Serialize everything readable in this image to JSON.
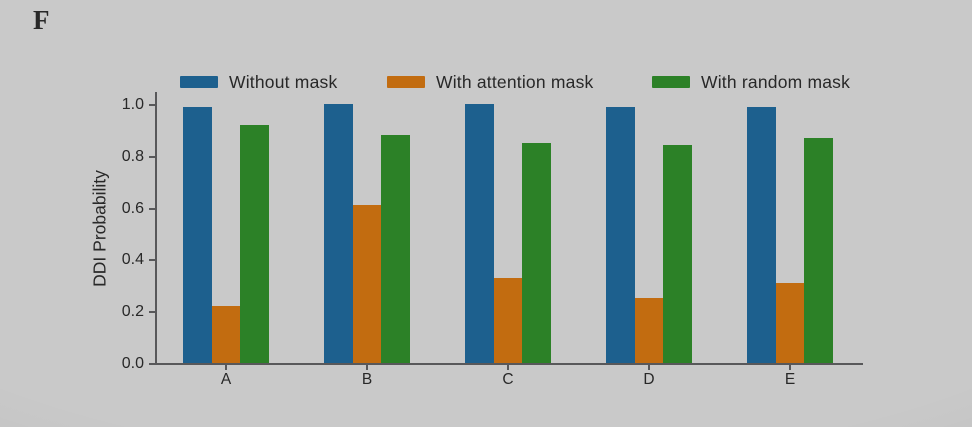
{
  "figure": {
    "panel_label": "F"
  },
  "colors": {
    "background": "#c9c9c9",
    "text": "#282828",
    "axis": "#58585a"
  },
  "chart_data": {
    "type": "bar",
    "title": "",
    "categories": [
      "A",
      "B",
      "C",
      "D",
      "E"
    ],
    "series": [
      {
        "name": "Without mask",
        "color": "#1d608e",
        "values": [
          0.99,
          1.0,
          1.0,
          0.99,
          0.99
        ]
      },
      {
        "name": "With attention mask",
        "color": "#c26c10",
        "values": [
          0.22,
          0.61,
          0.33,
          0.25,
          0.31
        ]
      },
      {
        "name": "With random mask",
        "color": "#2c8127",
        "values": [
          0.92,
          0.88,
          0.85,
          0.84,
          0.87
        ]
      }
    ],
    "xlabel": "",
    "ylabel": "DDI Probability",
    "ylim": [
      0,
      1.05
    ],
    "yticks": [
      "0.0",
      "0.2",
      "0.4",
      "0.6",
      "0.8",
      "1.0"
    ],
    "legend_position": "top-horizontal",
    "grid": false
  }
}
